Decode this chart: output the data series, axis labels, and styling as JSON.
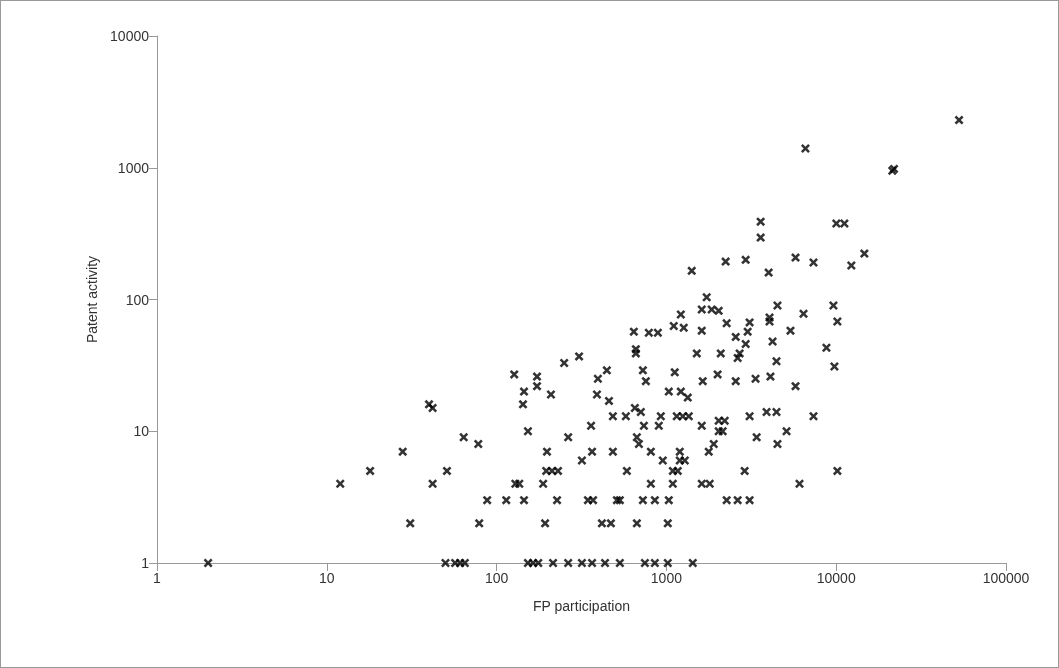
{
  "chart_data": {
    "type": "scatter",
    "xlabel": "FP participation",
    "ylabel": "Patent activity",
    "x": [
      2,
      50,
      57,
      61,
      65,
      153,
      164,
      176,
      215,
      264,
      318,
      365,
      435,
      532,
      747,
      855,
      1019,
      1430,
      31,
      79,
      193,
      417,
      471,
      670,
      1019,
      88,
      114,
      145,
      227,
      345,
      370,
      511,
      532,
      727,
      855,
      1033,
      2264,
      2628,
      3090,
      12,
      42,
      129,
      136,
      188,
      810,
      1091,
      1615,
      1799,
      6080,
      18,
      51,
      196,
      212,
      230,
      585,
      1091,
      1167,
      2890,
      10160,
      318,
      952,
      1199,
      1283,
      28,
      198,
      365,
      484,
      810,
      1199,
      1776,
      78,
      689,
      1900,
      4510,
      64,
      264,
      670,
      3400,
      153,
      2032,
      2145,
      5100,
      360,
      737,
      902,
      1615,
      2032,
      2205,
      484,
      577,
      927,
      1151,
      1249,
      1355,
      3090,
      7350,
      707,
      3890,
      4450,
      652,
      42,
      40,
      143,
      459,
      1336,
      390,
      209,
      145,
      1033,
      1216,
      173,
      5760,
      757,
      1637,
      2560,
      395,
      3350,
      173,
      4100,
      127,
      2003,
      1120,
      446,
      727,
      9760,
      250,
      4450,
      2628,
      306,
      661,
      1510,
      2090,
      2700,
      661,
      8760,
      2930,
      4220,
      2560,
      788,
      891,
      643,
      3010,
      1615,
      5380,
      1265,
      1105,
      2264,
      3090,
      10160,
      4050,
      4050,
      1216,
      6420,
      2032,
      1615,
      1848,
      4510,
      9630,
      1727,
      4000,
      1410,
      12280,
      7350,
      2233,
      2930,
      5760,
      14650,
      3590,
      3590,
      10020,
      11170,
      21400,
      21900,
      6590,
      52900
    ],
    "values": [
      1,
      1,
      1,
      1,
      1,
      1,
      1,
      1,
      1,
      1,
      1,
      1,
      1,
      1,
      1,
      1,
      1,
      1,
      2,
      2,
      2,
      2,
      2,
      2,
      2,
      3,
      3,
      3,
      3,
      3,
      3,
      3,
      3,
      3,
      3,
      3,
      3,
      3,
      3,
      4,
      4,
      4,
      4,
      4,
      4,
      4,
      4,
      4,
      4,
      5,
      5,
      5,
      5,
      5,
      5,
      5,
      5,
      5,
      5,
      6,
      6,
      6,
      6,
      7,
      7,
      7,
      7,
      7,
      7,
      7,
      8,
      8,
      8,
      8,
      9,
      9,
      9,
      9,
      10,
      10,
      10,
      10,
      11,
      11,
      11,
      11,
      12,
      12,
      13,
      13,
      13,
      13,
      13,
      13,
      13,
      13,
      14,
      14,
      14,
      15,
      15,
      16,
      16,
      17,
      18,
      19,
      19,
      20,
      20,
      20,
      22,
      22,
      24,
      24,
      24,
      25,
      25,
      26,
      26,
      27,
      27,
      28,
      29,
      29,
      31,
      33,
      34,
      36,
      37,
      39,
      39,
      39,
      39,
      42,
      43,
      46,
      48,
      52,
      56,
      56,
      57,
      57,
      58,
      58,
      61,
      63,
      66,
      67,
      68,
      68,
      73,
      77,
      78,
      82,
      84,
      84,
      90,
      90,
      104,
      160,
      165,
      181,
      191,
      194,
      200,
      208,
      223,
      295,
      390,
      377,
      377,
      950,
      980,
      1400,
      2300
    ],
    "color": "#000000",
    "marker": "cross",
    "log": "xy",
    "grid": false,
    "xlim": [
      1,
      100000
    ],
    "xticks": [
      1,
      10,
      100,
      1000,
      10000,
      100000
    ],
    "ylim": [
      1,
      10000
    ],
    "yticks": [
      1,
      10,
      100,
      1000,
      10000
    ]
  }
}
